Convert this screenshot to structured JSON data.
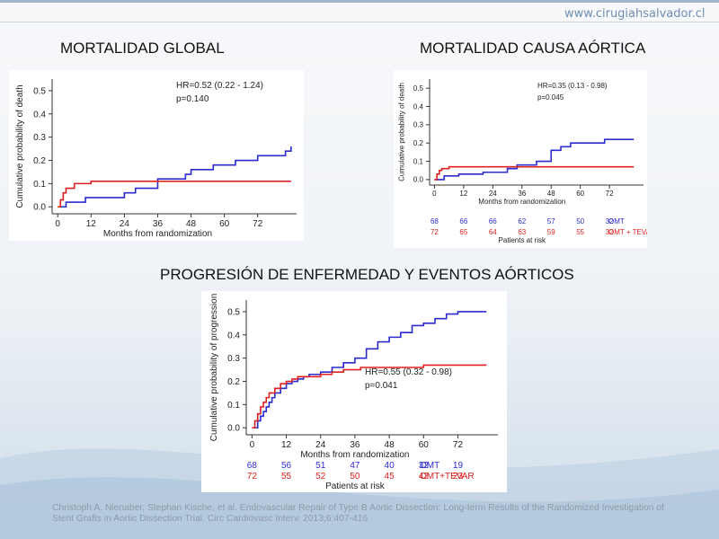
{
  "site": {
    "url": "www.cirugiahsalvador.cl"
  },
  "headings": {
    "global": "MORTALIDAD GLOBAL",
    "aortic": "MORTALIDAD CAUSA AÓRTICA",
    "progression": "PROGRESIÓN DE ENFERMEDAD Y EVENTOS AÓRTICOS"
  },
  "citation": "Christoph A. Nienaber, Stephan Kische, et al. Endovascular Repair of Type B Aortic Dissection: Long-term Results of the Randomized Investigation of Stent Grafts in Aortic Dissection Trial. Circ Cardiovasc Interv. 2013;6:407-416",
  "colors": {
    "omt": "#2b2bd0",
    "tevar": "#e02020",
    "axis": "#333333"
  },
  "chart_data": [
    {
      "id": "global",
      "type": "line",
      "xlabel": "Months from randomization",
      "ylabel": "Cumulative probability of death",
      "xticks": [
        0,
        12,
        24,
        36,
        48,
        60,
        72
      ],
      "yticks": [
        0.0,
        0.1,
        0.2,
        0.3,
        0.4,
        0.5
      ],
      "xlim": [
        -2,
        86
      ],
      "ylim": [
        -0.03,
        0.55
      ],
      "annotation": [
        "HR=0.52  (0.22 - 1.24)",
        "p=0.140"
      ],
      "series": [
        {
          "color": "#2b2bd0",
          "x": [
            0,
            3,
            10,
            20,
            24,
            28,
            36,
            46,
            48,
            56,
            64,
            72,
            82,
            84
          ],
          "y": [
            0,
            0.02,
            0.04,
            0.04,
            0.06,
            0.08,
            0.12,
            0.14,
            0.16,
            0.18,
            0.2,
            0.22,
            0.24,
            0.26
          ]
        },
        {
          "color": "#e02020",
          "x": [
            0,
            1,
            2,
            3,
            6,
            12,
            84
          ],
          "y": [
            0,
            0.03,
            0.06,
            0.08,
            0.1,
            0.11,
            0.11
          ]
        }
      ]
    },
    {
      "id": "aortic",
      "type": "line",
      "xlabel": "Months from randomization",
      "ylabel": "Cumulative probability of death",
      "xticks": [
        0,
        12,
        24,
        36,
        48,
        60,
        72
      ],
      "yticks": [
        0.0,
        0.1,
        0.2,
        0.3,
        0.4,
        0.5
      ],
      "xlim": [
        -2,
        86
      ],
      "ylim": [
        -0.03,
        0.55
      ],
      "annotation": [
        "HR=0.35  (0.13 - 0.98)",
        "p=0.045"
      ],
      "series": [
        {
          "color": "#2b2bd0",
          "x": [
            0,
            4,
            10,
            20,
            30,
            34,
            42,
            48,
            52,
            56,
            70,
            78,
            82
          ],
          "y": [
            0,
            0.02,
            0.03,
            0.04,
            0.06,
            0.08,
            0.1,
            0.16,
            0.18,
            0.2,
            0.22,
            0.22,
            0.22
          ]
        },
        {
          "color": "#e02020",
          "x": [
            0,
            1,
            2,
            3,
            6,
            82
          ],
          "y": [
            0,
            0.03,
            0.05,
            0.06,
            0.07,
            0.07
          ]
        }
      ],
      "risk_table": {
        "xs": [
          0,
          12,
          24,
          36,
          48,
          60,
          72
        ],
        "rows": [
          {
            "color": "#2b2bd0",
            "values": [
              "68",
              "66",
              "66",
              "62",
              "57",
              "50",
              "32"
            ],
            "label": "OMT"
          },
          {
            "color": "#e02020",
            "values": [
              "72",
              "65",
              "64",
              "63",
              "59",
              "55",
              "32"
            ],
            "label": "OMT + TEVAR"
          }
        ],
        "caption": "Patients at risk"
      }
    },
    {
      "id": "progression",
      "type": "line",
      "xlabel": "Months from randomization",
      "ylabel": "Cumulative probability of progression",
      "xticks": [
        0,
        12,
        24,
        36,
        48,
        60,
        72
      ],
      "yticks": [
        0.0,
        0.1,
        0.2,
        0.3,
        0.4,
        0.5
      ],
      "xlim": [
        -2,
        86
      ],
      "ylim": [
        -0.03,
        0.55
      ],
      "annotation": [
        "HR=0.55  (0.32 - 0.98)",
        "p=0.041"
      ],
      "series": [
        {
          "color": "#2b2bd0",
          "x": [
            0,
            2,
            3,
            4,
            5,
            6,
            7,
            8,
            10,
            12,
            14,
            16,
            18,
            20,
            24,
            28,
            32,
            36,
            40,
            44,
            48,
            52,
            56,
            60,
            64,
            68,
            72,
            82
          ],
          "y": [
            0,
            0.03,
            0.05,
            0.07,
            0.09,
            0.11,
            0.13,
            0.15,
            0.17,
            0.19,
            0.2,
            0.21,
            0.22,
            0.23,
            0.24,
            0.26,
            0.28,
            0.3,
            0.34,
            0.37,
            0.39,
            0.41,
            0.44,
            0.45,
            0.47,
            0.49,
            0.5,
            0.5
          ]
        },
        {
          "color": "#e02020",
          "x": [
            0,
            1,
            2,
            3,
            4,
            5,
            6,
            8,
            10,
            12,
            14,
            16,
            20,
            24,
            28,
            32,
            38,
            48,
            56,
            60,
            64,
            70,
            82
          ],
          "y": [
            0,
            0.03,
            0.06,
            0.09,
            0.11,
            0.13,
            0.15,
            0.17,
            0.19,
            0.2,
            0.21,
            0.22,
            0.22,
            0.23,
            0.24,
            0.25,
            0.26,
            0.26,
            0.26,
            0.27,
            0.27,
            0.27,
            0.27
          ]
        }
      ],
      "risk_table": {
        "xs": [
          0,
          12,
          24,
          36,
          48,
          60,
          72
        ],
        "rows": [
          {
            "color": "#2b2bd0",
            "values": [
              "68",
              "56",
              "51",
              "47",
              "40",
              "32",
              "19"
            ],
            "label": "OMT"
          },
          {
            "color": "#e02020",
            "values": [
              "72",
              "55",
              "52",
              "50",
              "45",
              "42",
              "23"
            ],
            "label": "OMT+TEVAR"
          }
        ],
        "caption": "Patients at risk"
      }
    }
  ]
}
